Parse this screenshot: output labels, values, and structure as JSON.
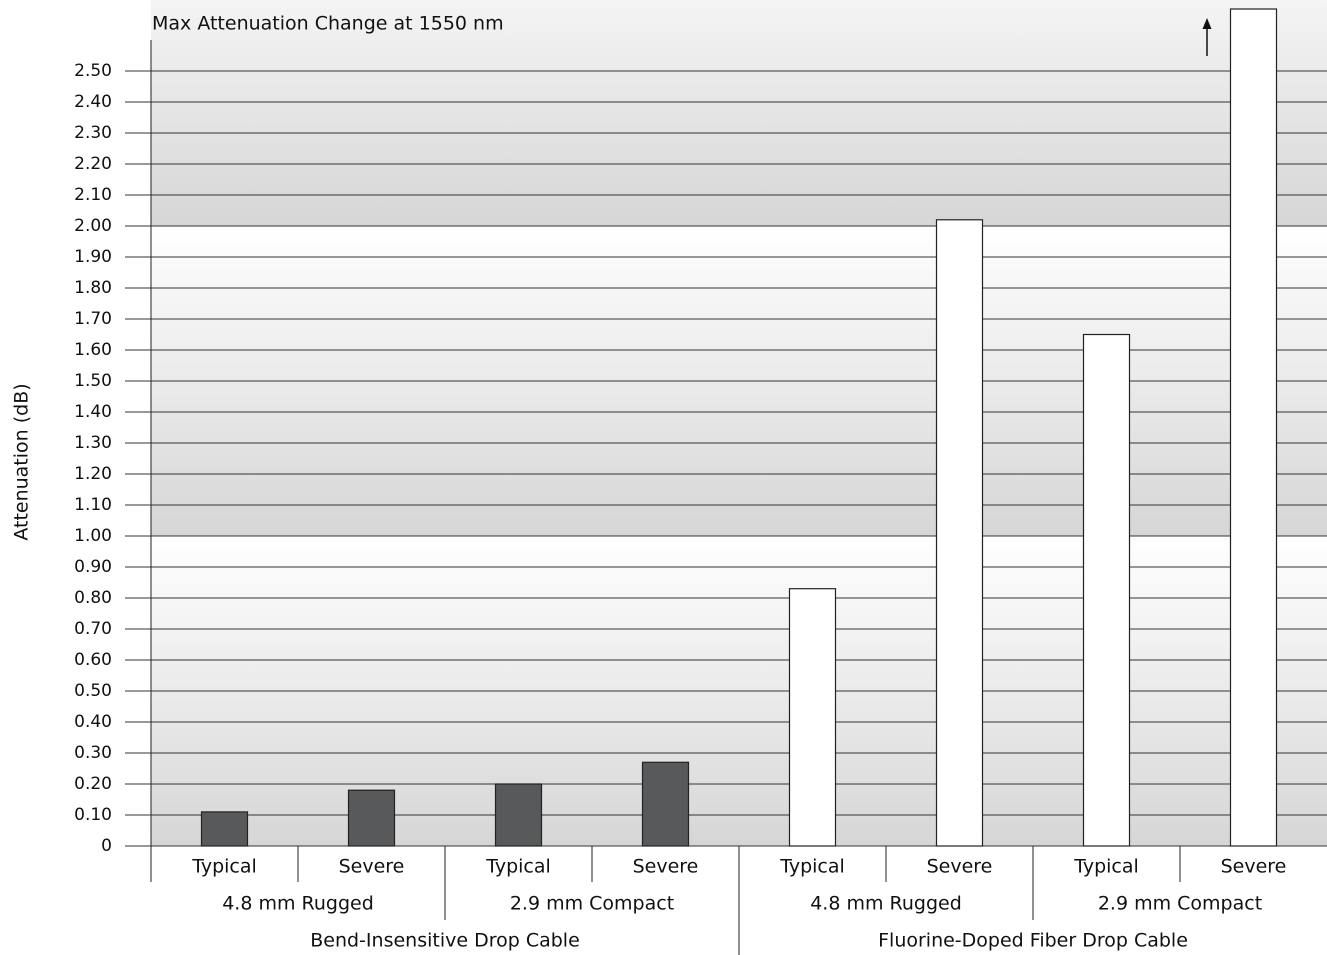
{
  "chart_data": {
    "type": "bar",
    "title": "Max Attenuation Change at 1550 nm",
    "ylabel": "Attenuation (dB)",
    "categories": [
      "Typical",
      "Severe",
      "Typical",
      "Severe",
      "Typical",
      "Severe",
      "Typical",
      "Severe"
    ],
    "subgroups": [
      "4.8 mm Rugged",
      "2.9 mm Compact",
      "4.8 mm Rugged",
      "2.9 mm Compact"
    ],
    "groups": [
      "Bend-Insensitive Drop Cable",
      "Fluorine-Doped Fiber Drop Cable"
    ],
    "values": [
      0.11,
      0.18,
      0.2,
      0.27,
      0.83,
      2.02,
      1.65,
      2.7
    ],
    "colors": [
      "#58595b",
      "#58595b",
      "#58595b",
      "#58595b",
      "#ffffff",
      "#ffffff",
      "#ffffff",
      "#ffffff"
    ],
    "ylim": [
      0,
      2.7
    ],
    "yticks": [
      0,
      {
        "value": 0.1,
        "label": "0.10"
      },
      {
        "value": 0.2,
        "label": "0.20"
      },
      {
        "value": 0.3,
        "label": "0.30"
      },
      {
        "value": 0.4,
        "label": "0.40"
      },
      {
        "value": 0.5,
        "label": "0.50"
      },
      {
        "value": 0.6,
        "label": "0.60"
      },
      {
        "value": 0.7,
        "label": "0.70"
      },
      {
        "value": 0.8,
        "label": "0.80"
      },
      {
        "value": 0.9,
        "label": "0.90"
      },
      {
        "value": 1,
        "label": "1.00"
      },
      {
        "value": 1.1,
        "label": "1.10"
      },
      {
        "value": 1.2,
        "label": "1.20"
      },
      {
        "value": 1.3,
        "label": "1.30"
      },
      {
        "value": 1.4,
        "label": "1.40"
      },
      {
        "value": 1.5,
        "label": "1.50"
      },
      {
        "value": 1.6,
        "label": "1.60"
      },
      {
        "value": 1.7,
        "label": "1.70"
      },
      {
        "value": 1.8,
        "label": "1.80"
      },
      {
        "value": 1.9,
        "label": "1.90"
      },
      {
        "value": 2,
        "label": "2.00"
      },
      {
        "value": 2.1,
        "label": "2.10"
      },
      {
        "value": 2.2,
        "label": "2.20"
      },
      {
        "value": 2.3,
        "label": "2.30"
      },
      {
        "value": 2.4,
        "label": "2.40"
      },
      {
        "value": 2.5,
        "label": "2.50"
      }
    ],
    "grid": true
  }
}
